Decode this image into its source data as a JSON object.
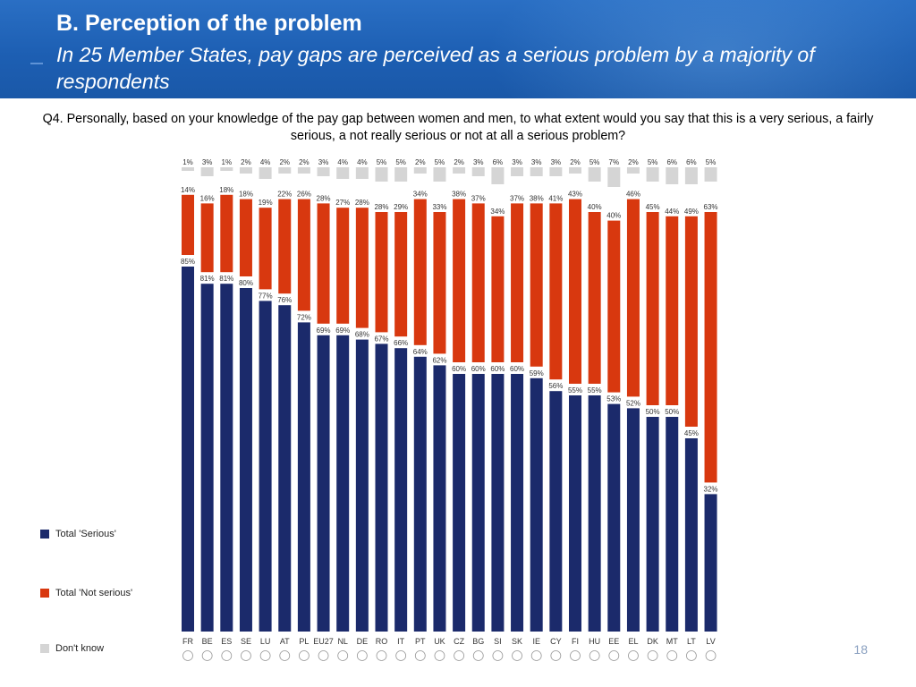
{
  "header": {
    "title": "B. Perception of the problem",
    "subtitle": "In 25 Member States, pay gaps are perceived as a serious problem by a majority of respondents"
  },
  "question": "Q4. Personally, based on your knowledge of the pay gap between women and men, to what extent would you say that this is a very serious, a fairly serious, a not really serious or not at all a serious problem?",
  "legend": {
    "serious": "Total 'Serious'",
    "not_serious": "Total 'Not serious'",
    "dont_know": "Don't know"
  },
  "page_number": "18",
  "colors": {
    "serious": "#1b2a6b",
    "not_serious": "#d8380f",
    "dont_know": "#d5d5d5"
  },
  "chart_data": {
    "type": "bar",
    "stacked": true,
    "categories": [
      "FR",
      "BE",
      "ES",
      "SE",
      "LU",
      "AT",
      "PL",
      "EU27",
      "NL",
      "DE",
      "RO",
      "IT",
      "PT",
      "UK",
      "CZ",
      "BG",
      "SI",
      "SK",
      "IE",
      "CY",
      "FI",
      "HU",
      "EE",
      "EL",
      "DK",
      "MT",
      "LT",
      "LV"
    ],
    "series": [
      {
        "name": "Total 'Serious'",
        "values": [
          85,
          81,
          81,
          80,
          77,
          76,
          72,
          69,
          69,
          68,
          67,
          66,
          64,
          62,
          60,
          60,
          60,
          60,
          59,
          56,
          55,
          55,
          53,
          52,
          50,
          50,
          45,
          32
        ]
      },
      {
        "name": "Total 'Not serious'",
        "values": [
          14,
          16,
          18,
          18,
          19,
          22,
          26,
          28,
          27,
          28,
          28,
          29,
          34,
          33,
          38,
          37,
          34,
          37,
          38,
          41,
          43,
          40,
          40,
          46,
          45,
          44,
          49,
          63
        ]
      },
      {
        "name": "Don't know",
        "values": [
          1,
          3,
          1,
          2,
          4,
          2,
          2,
          3,
          4,
          4,
          5,
          5,
          2,
          5,
          2,
          3,
          6,
          3,
          3,
          3,
          2,
          5,
          7,
          2,
          5,
          6,
          6,
          5
        ]
      }
    ],
    "ylim": [
      0,
      100
    ],
    "grid": false,
    "legend_position": "left"
  }
}
